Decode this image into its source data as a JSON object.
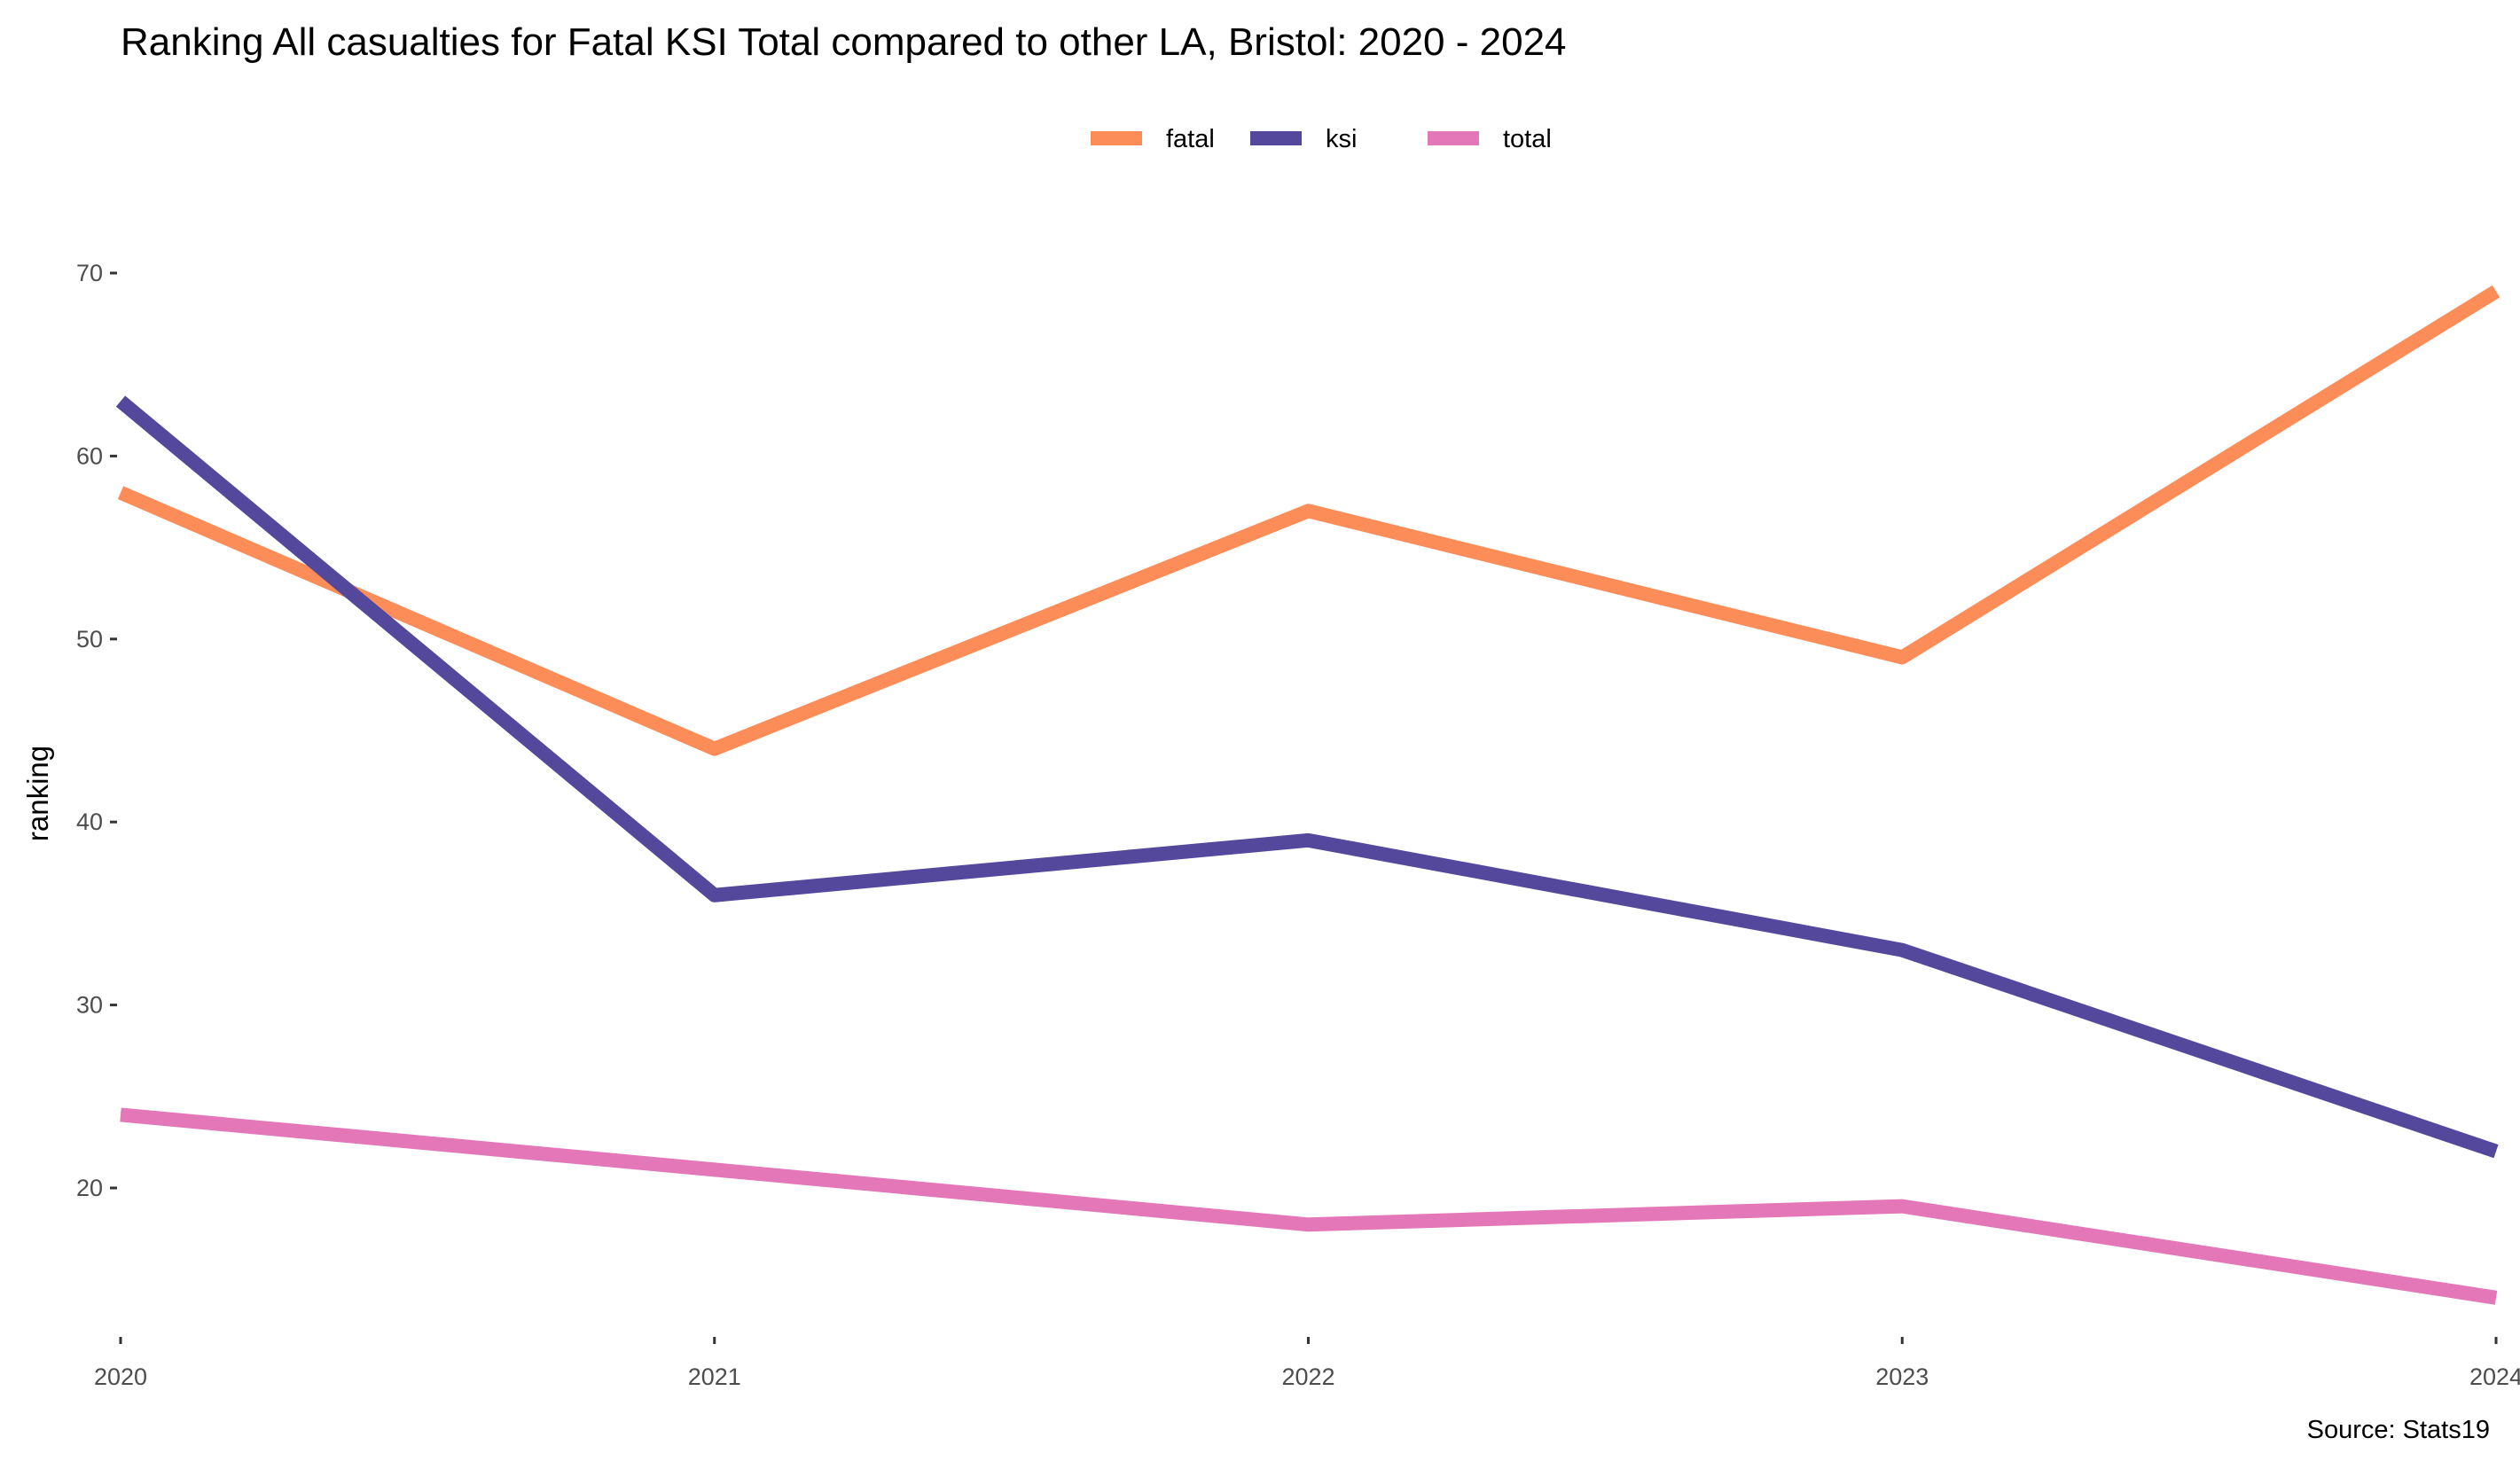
{
  "chart_data": {
    "type": "line",
    "title": "Ranking All casualties for Fatal KSI Total compared to other LA, Bristol: 2020 - 2024",
    "xlabel": "",
    "ylabel": "ranking",
    "caption": "Source: Stats19",
    "x": [
      2020,
      2021,
      2022,
      2023,
      2024
    ],
    "x_tick_labels": [
      "2020",
      "2021",
      "2022",
      "2023",
      "2024"
    ],
    "y_ticks": [
      20,
      30,
      40,
      50,
      60,
      70
    ],
    "y_tick_labels": [
      "20",
      "30",
      "40",
      "50",
      "60",
      "70"
    ],
    "xlim": [
      2020,
      2024
    ],
    "ylim": [
      11.2,
      72
    ],
    "grid": false,
    "legend_position": "top",
    "series": [
      {
        "name": "fatal",
        "color": "#FC8D59",
        "values": [
          58,
          44,
          57,
          49,
          69
        ]
      },
      {
        "name": "ksi",
        "color": "#54489D",
        "values": [
          63,
          36,
          39,
          33,
          22
        ]
      },
      {
        "name": "total",
        "color": "#E377B7",
        "values": [
          24,
          21,
          18,
          19,
          14
        ]
      }
    ]
  }
}
